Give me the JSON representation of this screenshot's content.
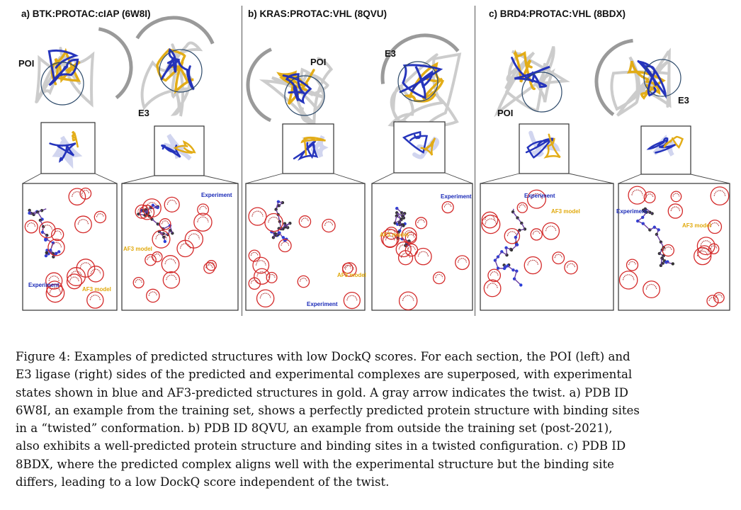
{
  "figure": {
    "panels": [
      {
        "title": "a)  BTK:PROTAC:cIAP  (6W8I)",
        "poi_label": "POI",
        "e3_label": "E3",
        "left_legend": [
          "Experiment",
          "AF3 model"
        ],
        "right_legend": [
          "Experiment",
          "AF3 model"
        ]
      },
      {
        "title": "b)  KRAS:PROTAC:VHL (8QVU)",
        "poi_label": "POI",
        "e3_label": "E3",
        "left_legend": [
          "AF3 model",
          "Experiment"
        ],
        "right_legend": [
          "Experiment",
          "AF3 model"
        ]
      },
      {
        "title": "c)  BRD4:PROTAC:VHL (8BDX)",
        "poi_label": "POI",
        "e3_label": "E3",
        "left_legend": [
          "Experiment",
          "AF3 model"
        ],
        "right_legend": [
          "Experiment",
          "AF3 model"
        ]
      }
    ],
    "colors": {
      "experiment": "#1a2ab8",
      "af3": "#e1a90c",
      "circle": "#d42a2a",
      "protein": "#c9c9c9"
    }
  },
  "caption": {
    "lines": [
      "Figure 4: Examples of predicted structures with low DockQ scores. For each section, the POI (left) and",
      "E3 ligase (right) sides of the predicted and experimental complexes are superposed, with experimental",
      "states shown in blue and AF3-predicted structures in gold. A gray arrow indicates the twist. a) PDB ID",
      "6W8I, an example from the training set, shows a perfectly predicted protein structure with binding sites",
      "in a “twisted” conformation. b) PDB ID 8QVU, an example from outside the training set (post-2021),",
      "also exhibits a well-predicted protein structure and binding sites in a twisted configuration. c) PDB ID",
      "8BDX, where the predicted complex aligns well with the experimental structure but the binding site",
      "differs, leading to a low DockQ score independent of the twist."
    ]
  }
}
